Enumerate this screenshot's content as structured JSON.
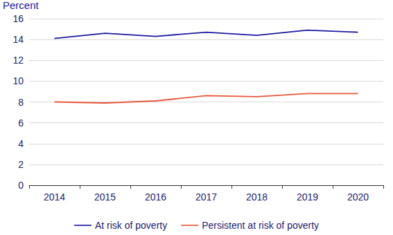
{
  "chart_data": {
    "type": "line",
    "ylabel": "Percent",
    "categories": [
      "2014",
      "2015",
      "2016",
      "2017",
      "2018",
      "2019",
      "2020"
    ],
    "series": [
      {
        "name": "At risk of poverty",
        "color": "#1a1aa0",
        "values": [
          14.1,
          14.6,
          14.3,
          14.7,
          14.4,
          14.9,
          14.7
        ]
      },
      {
        "name": "Persistent at risk of poverty",
        "color": "#e8553a",
        "values": [
          8.0,
          7.9,
          8.1,
          8.6,
          8.5,
          8.8,
          8.8
        ]
      }
    ],
    "ylim": [
      0,
      16
    ],
    "yticks": [
      0,
      2,
      4,
      6,
      8,
      10,
      12,
      14,
      16
    ],
    "grid": true,
    "legend": "bottom"
  }
}
